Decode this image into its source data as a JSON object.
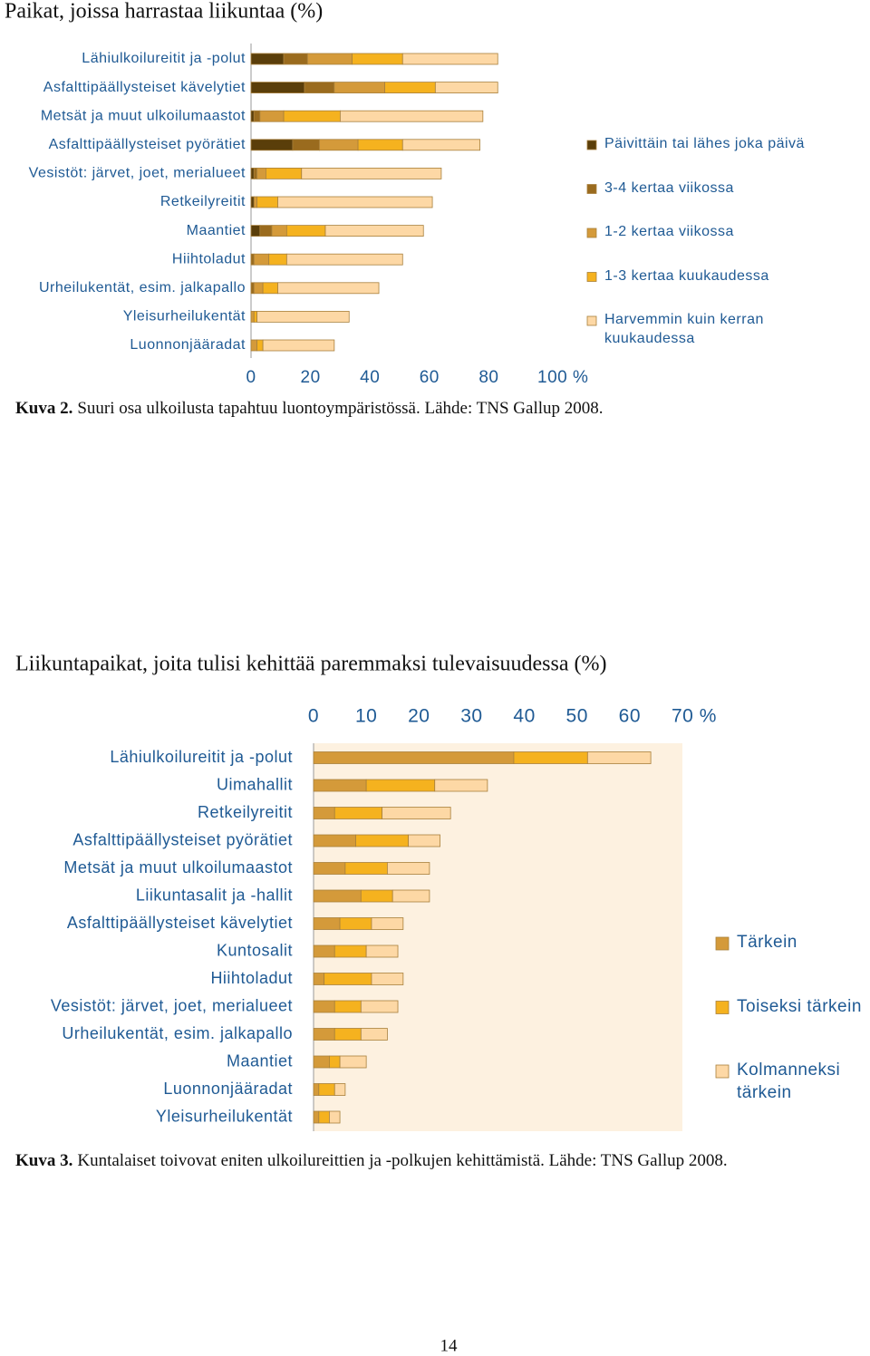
{
  "chart_data": [
    {
      "type": "barh",
      "stacked": true,
      "title": "Paikat, joissa harrastaa liikuntaa (%)",
      "categories": [
        "Lähiulkoilureitit ja -polut",
        "Asfalttipäällysteiset kävelytiet",
        "Metsät ja muut ulkoilumaastot",
        "Asfalttipäällysteiset pyörätiet",
        "Vesistöt: järvet, joet, merialueet",
        "Retkeilyreitit",
        "Maantiet",
        "Hiihtoladut",
        "Urheilukentät, esim. jalkapallo",
        "Yleisurheilukentät",
        "Luonnonjääradat"
      ],
      "series": [
        {
          "name": "Päivittäin tai lähes joka päivä",
          "color": "#5a3e0a",
          "values": [
            11,
            18,
            1,
            14,
            1,
            1,
            3,
            0,
            0,
            0,
            0
          ]
        },
        {
          "name": "3-4 kertaa viikossa",
          "color": "#9a6b1e",
          "values": [
            8,
            10,
            2,
            9,
            1,
            0,
            4,
            1,
            1,
            0,
            0
          ]
        },
        {
          "name": "1-2 kertaa viikossa",
          "color": "#d49a3a",
          "values": [
            15,
            17,
            8,
            13,
            3,
            1,
            5,
            5,
            3,
            1,
            2
          ]
        },
        {
          "name": "1-3 kertaa kuukaudessa",
          "color": "#f5b21f",
          "values": [
            17,
            17,
            19,
            15,
            12,
            7,
            13,
            6,
            5,
            1,
            2
          ]
        },
        {
          "name": "Harvemmin kuin kerran kuukaudessa",
          "color": "#fdd8a5",
          "values": [
            32,
            21,
            48,
            26,
            47,
            52,
            33,
            39,
            34,
            31,
            24
          ]
        }
      ],
      "xlim": [
        0,
        100
      ],
      "xticks": [
        0,
        20,
        40,
        60,
        80,
        {
          "value": 100,
          "label": "100 %"
        }
      ],
      "grid": false,
      "legend": "right",
      "caption_label": "Kuva 2.",
      "caption": "Suuri osa ulkoilusta tapahtuu luontoympäristössä. Lähde: TNS Gallup 2008."
    },
    {
      "type": "barh",
      "stacked": true,
      "title": "Liikuntapaikat, joita tulisi kehittää paremmaksi tulevaisuudessa (%)",
      "categories": [
        "Lähiulkoilureitit ja -polut",
        "Uimahallit",
        "Retkeilyreitit",
        "Asfalttipäällysteiset pyörätiet",
        "Metsät ja muut ulkoilumaastot",
        "Liikuntasalit ja -hallit",
        "Asfalttipäällysteiset kävelytiet",
        "Kuntosalit",
        "Hiihtoladut",
        "Vesistöt: järvet, joet, merialueet",
        "Urheilukentät, esim. jalkapallo",
        "Maantiet",
        "Luonnonjääradat",
        "Yleisurheilukentät"
      ],
      "series": [
        {
          "name": "Tärkein",
          "color": "#d49a3a",
          "values": [
            38,
            10,
            4,
            8,
            6,
            9,
            5,
            4,
            2,
            4,
            4,
            3,
            1,
            1
          ]
        },
        {
          "name": "Toiseksi tärkein",
          "color": "#f5b21f",
          "values": [
            14,
            13,
            9,
            10,
            8,
            6,
            6,
            6,
            9,
            5,
            5,
            2,
            3,
            2
          ]
        },
        {
          "name": "Kolmanneksi tärkein",
          "color": "#fdd8a5",
          "values": [
            12,
            10,
            13,
            6,
            8,
            7,
            6,
            6,
            6,
            7,
            5,
            5,
            2,
            2
          ]
        }
      ],
      "xlim": [
        0,
        70
      ],
      "xticks": [
        0,
        10,
        20,
        30,
        40,
        50,
        60,
        {
          "value": 70,
          "label": "70 %"
        }
      ],
      "grid": false,
      "legend": "right",
      "caption_label": "Kuva 3.",
      "caption": "Kuntalaiset toivovat eniten ulkoilureittien ja -polkujen kehittämistä. Lähde: TNS Gallup 2008."
    }
  ],
  "page_number": 14
}
